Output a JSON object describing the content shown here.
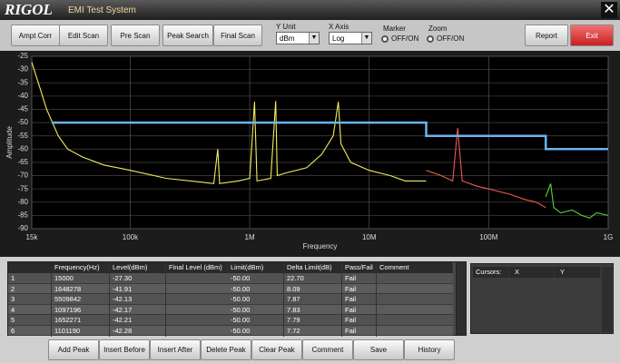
{
  "window": {
    "logo": "RIGOL",
    "title": "EMI Test System"
  },
  "toolbar": {
    "buttons": [
      "Ampt Corr",
      "Edit Scan",
      "Pre Scan",
      "Peak Search",
      "Final Scan"
    ],
    "y_unit": {
      "label": "Y Unit",
      "value": "dBm"
    },
    "x_axis": {
      "label": "X Axis",
      "value": "Log"
    },
    "marker": {
      "label": "Marker",
      "option": "OFF/ON"
    },
    "zoom": {
      "label": "Zoom",
      "option": "OFF/ON"
    },
    "report": "Report",
    "exit": "Exit"
  },
  "chart_data": {
    "type": "line",
    "x_label": "Frequency",
    "y_label": "Amplitude",
    "log_x": true,
    "grid": true,
    "xlim": [
      15000,
      1000000000
    ],
    "xticks": [
      {
        "value": 15000,
        "label": "15k"
      },
      {
        "value": 100000,
        "label": "100k"
      },
      {
        "value": 1000000,
        "label": "1M"
      },
      {
        "value": 10000000,
        "label": "10M"
      },
      {
        "value": 100000000,
        "label": "100M"
      },
      {
        "value": 1000000000,
        "label": "1G"
      }
    ],
    "ylim": [
      -90,
      -25
    ],
    "yticks": [
      -25,
      -30,
      -35,
      -40,
      -45,
      -50,
      -55,
      -60,
      -65,
      -70,
      -75,
      -80,
      -85,
      -90
    ],
    "series": [
      {
        "color": "#f2ec5c",
        "x": [
          15000,
          17000,
          20000,
          25000,
          30000,
          40000,
          60000,
          100000,
          200000,
          400000,
          500000,
          540000,
          560000,
          800000,
          1000000,
          1097196,
          1150000,
          1500000,
          1648278,
          1700000,
          2000000,
          3000000,
          4000000,
          5000000,
          5509842,
          5800000,
          7000000,
          10000000,
          15000000,
          20000000,
          30000000
        ],
        "values": [
          -27.3,
          -35,
          -45,
          -55,
          -60,
          -63,
          -66,
          -68,
          -71,
          -72.5,
          -73,
          -60,
          -73,
          -72,
          -71,
          -42.17,
          -72,
          -71,
          -41.91,
          -70,
          -69,
          -67,
          -62,
          -55,
          -42.13,
          -58,
          -65,
          -68,
          -70,
          -72,
          -72
        ]
      },
      {
        "color": "#f05a4a",
        "x": [
          30000000,
          40000000,
          50000000,
          55000000,
          60000000,
          80000000,
          100000000,
          150000000,
          200000000,
          250000000,
          300000000
        ],
        "values": [
          -68,
          -70,
          -72,
          -52,
          -72,
          -74,
          -75,
          -77,
          -79,
          -80,
          -82
        ]
      },
      {
        "color": "#5ed13a",
        "x": [
          300000000,
          330000000,
          350000000,
          400000000,
          500000000,
          600000000,
          700000000,
          800000000,
          1000000000
        ],
        "values": [
          -78,
          -73,
          -82,
          -84,
          -83,
          -85,
          -86,
          -84,
          -85
        ]
      },
      {
        "color": "#6ab4f0",
        "x": [
          22000,
          30000000,
          30000000,
          300000000,
          300000000,
          1000000000
        ],
        "values": [
          -50,
          -50,
          -55,
          -55,
          -60,
          -60
        ]
      }
    ]
  },
  "table": {
    "headers": [
      "Frequency(Hz)",
      "Level(dBm)",
      "Final Level (dBm)",
      "Limit(dBm)",
      "Delta Limit(dB)",
      "Pass/Fail",
      "Comment"
    ],
    "rows": [
      {
        "index": "1",
        "frequency": "15000",
        "level": "-27.30",
        "limit": "-50.00",
        "delta_limit": "22.70",
        "pass_fail": "Fail"
      },
      {
        "index": "2",
        "frequency": "1648278",
        "level": "-41.91",
        "limit": "-50.00",
        "delta_limit": "8.09",
        "pass_fail": "Fail"
      },
      {
        "index": "3",
        "frequency": "5509842",
        "level": "-42.13",
        "limit": "-50.00",
        "delta_limit": "7.87",
        "pass_fail": "Fail"
      },
      {
        "index": "4",
        "frequency": "1097196",
        "level": "-42.17",
        "limit": "-50.00",
        "delta_limit": "7.83",
        "pass_fail": "Fail"
      },
      {
        "index": "5",
        "frequency": "1652271",
        "level": "-42.21",
        "limit": "-50.00",
        "delta_limit": "7.79",
        "pass_fail": "Fail"
      },
      {
        "index": "6",
        "frequency": "1101190",
        "level": "-42.28",
        "limit": "-50.00",
        "delta_limit": "7.72",
        "pass_fail": "Fail"
      }
    ]
  },
  "cursors": {
    "headers": [
      "Cursors:",
      "X",
      "Y"
    ]
  },
  "bottom_buttons": [
    "Add Peak",
    "Insert Before",
    "Insert After",
    "Delete Peak",
    "Clear Peak",
    "Comment",
    "Save",
    "History"
  ]
}
